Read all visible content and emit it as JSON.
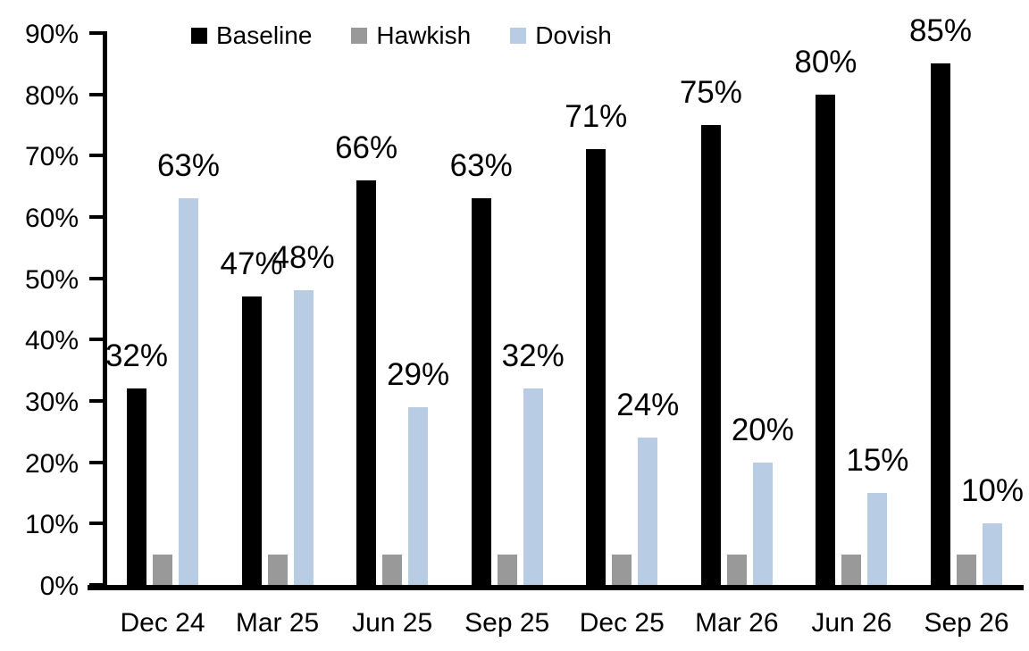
{
  "chart_data": {
    "type": "bar",
    "title": "",
    "categories": [
      "Dec 24",
      "Mar 25",
      "Jun 25",
      "Sep 25",
      "Dec 25",
      "Mar 26",
      "Jun 26",
      "Sep 26"
    ],
    "series": [
      {
        "name": "Baseline",
        "color": "#000000",
        "values": [
          32,
          47,
          66,
          63,
          71,
          75,
          80,
          85
        ],
        "show_labels": true
      },
      {
        "name": "Hawkish",
        "color": "#999999",
        "values": [
          5,
          5,
          5,
          5,
          5,
          5,
          5,
          5
        ],
        "show_labels": false
      },
      {
        "name": "Dovish",
        "color": "#b8cce4",
        "values": [
          63,
          48,
          29,
          32,
          24,
          20,
          15,
          10
        ],
        "show_labels": true
      }
    ],
    "data_label_suffix": "%",
    "ylim": [
      0,
      90
    ],
    "yticks": [
      "0%",
      "10%",
      "20%",
      "30%",
      "40%",
      "50%",
      "60%",
      "70%",
      "80%",
      "90%"
    ],
    "ytick_values": [
      0,
      10,
      20,
      30,
      40,
      50,
      60,
      70,
      80,
      90
    ],
    "xlabel": "",
    "ylabel": "",
    "grid": false,
    "legend_position": "top"
  }
}
